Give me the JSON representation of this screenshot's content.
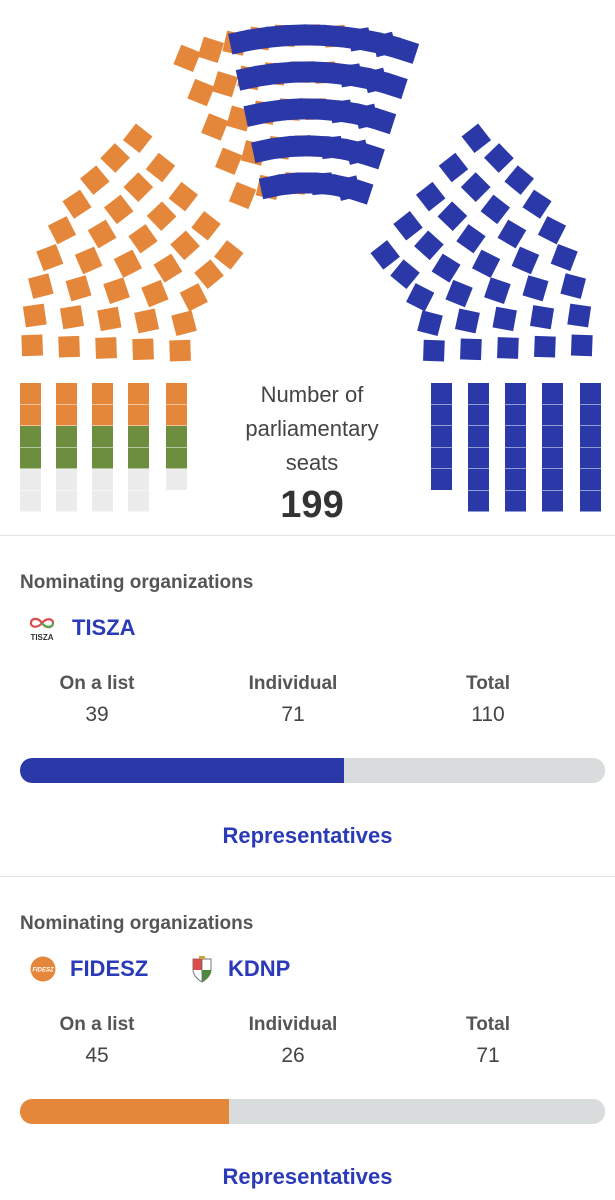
{
  "chart": {
    "label_line1": "Number of",
    "label_line2": "parliamentary",
    "label_line3": "seats",
    "total": "199",
    "colors": {
      "tisza": "#2b38a8",
      "fidesz": "#e5873a",
      "kdnp": "#6e8e3f",
      "empty": "#ececec"
    }
  },
  "cards": [
    {
      "nominating_label": "Nominating organizations",
      "orgs": [
        {
          "logo_icon": "tisza-logo-icon",
          "logo_text": "TISZA",
          "name": "TISZA"
        }
      ],
      "stats": {
        "list_label": "On a list",
        "list_value": "39",
        "individual_label": "Individual",
        "individual_value": "71",
        "total_label": "Total",
        "total_value": "110"
      },
      "share": 0.553,
      "bar_color": "#2b38a8",
      "link": "Representatives"
    },
    {
      "nominating_label": "Nominating organizations",
      "orgs": [
        {
          "logo_icon": "fidesz-logo-icon",
          "logo_text": "FIDESZ",
          "name": "FIDESZ"
        },
        {
          "logo_icon": "kdnp-logo-icon",
          "name": "KDNP"
        }
      ],
      "stats": {
        "list_label": "On a list",
        "list_value": "45",
        "individual_label": "Individual",
        "individual_value": "26",
        "total_label": "Total",
        "total_value": "71"
      },
      "share": 0.357,
      "bar_color": "#e5873a",
      "link": "Representatives"
    }
  ]
}
